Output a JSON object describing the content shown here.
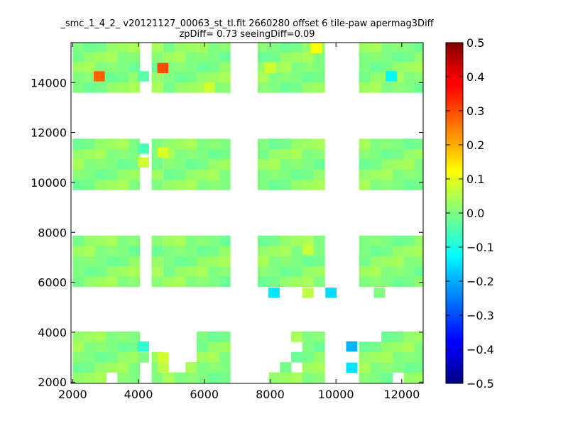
{
  "chart_data": {
    "type": "heatmap",
    "title": "_smc_1_4_2_ v20121127_00063_st_tl.fit 2660280 offset 6 tile-paw apermag3Diff",
    "subtitle": "zpDiff= 0.73 seeingDiff=0.09",
    "xlabel": "",
    "ylabel": "",
    "xlim": [
      1950,
      12650
    ],
    "ylim": [
      1950,
      15600
    ],
    "xticks": [
      2000,
      4000,
      6000,
      8000,
      10000,
      12000
    ],
    "yticks": [
      2000,
      4000,
      6000,
      8000,
      10000,
      12000,
      14000
    ],
    "colorbar": {
      "colormap": "jet",
      "range": [
        -0.5,
        0.5
      ],
      "ticks": [
        0.5,
        0.4,
        0.3,
        0.2,
        0.1,
        0.0,
        -0.1,
        -0.2,
        -0.3,
        -0.4,
        -0.5
      ],
      "tick_labels": [
        "0.5",
        "0.4",
        "0.3",
        "0.2",
        "0.1",
        "0.0",
        "−0.1",
        "−0.2",
        "−0.3",
        "−0.4",
        "−0.5"
      ]
    },
    "grid": false,
    "cell_size": [
      340,
      410
    ],
    "columns": [
      {
        "x0": 2000,
        "n": 6
      },
      {
        "x0": 4400,
        "n": 1
      },
      {
        "x0": 4750,
        "n": 6
      },
      {
        "x0": 7620,
        "n": 6
      },
      {
        "x0": 10700,
        "n": 6
      }
    ],
    "row_bands": [
      {
        "y0": 1980,
        "n": 5
      },
      {
        "y0": 5820,
        "n": 5
      },
      {
        "y0": 9700,
        "n": 5
      },
      {
        "y0": 13600,
        "n": 5
      }
    ],
    "base_values": [
      0.02,
      0.0,
      -0.02,
      0.03,
      0.01,
      -0.01,
      0.04,
      0.0
    ],
    "missing_cells": [
      [
        2,
        0,
        1
      ],
      [
        2,
        0,
        2
      ],
      [
        2,
        0,
        3
      ],
      [
        2,
        0,
        4
      ],
      [
        2,
        1,
        1
      ],
      [
        2,
        1,
        2
      ],
      [
        2,
        1,
        3
      ],
      [
        2,
        1,
        4
      ],
      [
        2,
        2,
        2
      ],
      [
        2,
        2,
        3
      ],
      [
        2,
        2,
        4
      ],
      [
        3,
        0,
        0
      ],
      [
        3,
        0,
        1
      ],
      [
        3,
        0,
        2
      ],
      [
        3,
        0,
        3
      ],
      [
        3,
        0,
        4
      ],
      [
        3,
        1,
        1
      ],
      [
        3,
        1,
        2
      ],
      [
        3,
        1,
        3
      ],
      [
        3,
        1,
        4
      ],
      [
        3,
        2,
        2
      ],
      [
        3,
        2,
        3
      ],
      [
        3,
        2,
        4
      ],
      [
        1,
        0,
        4
      ],
      [
        1,
        0,
        3
      ],
      [
        0,
        3,
        0
      ],
      [
        4,
        3,
        0
      ],
      [
        4,
        0,
        5
      ],
      [
        4,
        1,
        5
      ],
      [
        4,
        2,
        5
      ],
      [
        4,
        0,
        4
      ],
      [
        4,
        1,
        4
      ],
      [
        3,
        3,
        1
      ],
      [
        3,
        3,
        3
      ],
      [
        0,
        3,
        5
      ],
      [
        1,
        1,
        5
      ],
      [
        1,
        1,
        4
      ]
    ],
    "overrides": [
      {
        "x": 2810,
        "y": 14250,
        "value": 0.28
      },
      {
        "x": 4740,
        "y": 14580,
        "value": 0.3
      },
      {
        "x": 11680,
        "y": 14250,
        "value": -0.13
      },
      {
        "x": 4150,
        "y": 14250,
        "value": -0.04
      },
      {
        "x": 6150,
        "y": 13800,
        "value": 0.08
      },
      {
        "x": 8120,
        "y": 5580,
        "value": -0.15
      },
      {
        "x": 9850,
        "y": 5580,
        "value": -0.16
      },
      {
        "x": 9150,
        "y": 5580,
        "value": 0.06
      },
      {
        "x": 11320,
        "y": 5580,
        "value": 0.0
      },
      {
        "x": 10480,
        "y": 3430,
        "value": -0.2
      },
      {
        "x": 10480,
        "y": 2580,
        "value": -0.15
      },
      {
        "x": 4150,
        "y": 3430,
        "value": -0.08
      },
      {
        "x": 4150,
        "y": 2990,
        "value": 0.0
      },
      {
        "x": 4750,
        "y": 2990,
        "value": 0.08
      },
      {
        "x": 4750,
        "y": 2580,
        "value": 0.06
      },
      {
        "x": 4150,
        "y": 10800,
        "value": 0.08
      },
      {
        "x": 4150,
        "y": 11350,
        "value": -0.05
      },
      {
        "x": 4750,
        "y": 11200,
        "value": 0.09
      },
      {
        "x": 8000,
        "y": 14580,
        "value": 0.08
      },
      {
        "x": 9400,
        "y": 15380,
        "value": 0.12
      },
      {
        "x": 9150,
        "y": 7300,
        "value": 0.07
      }
    ]
  }
}
